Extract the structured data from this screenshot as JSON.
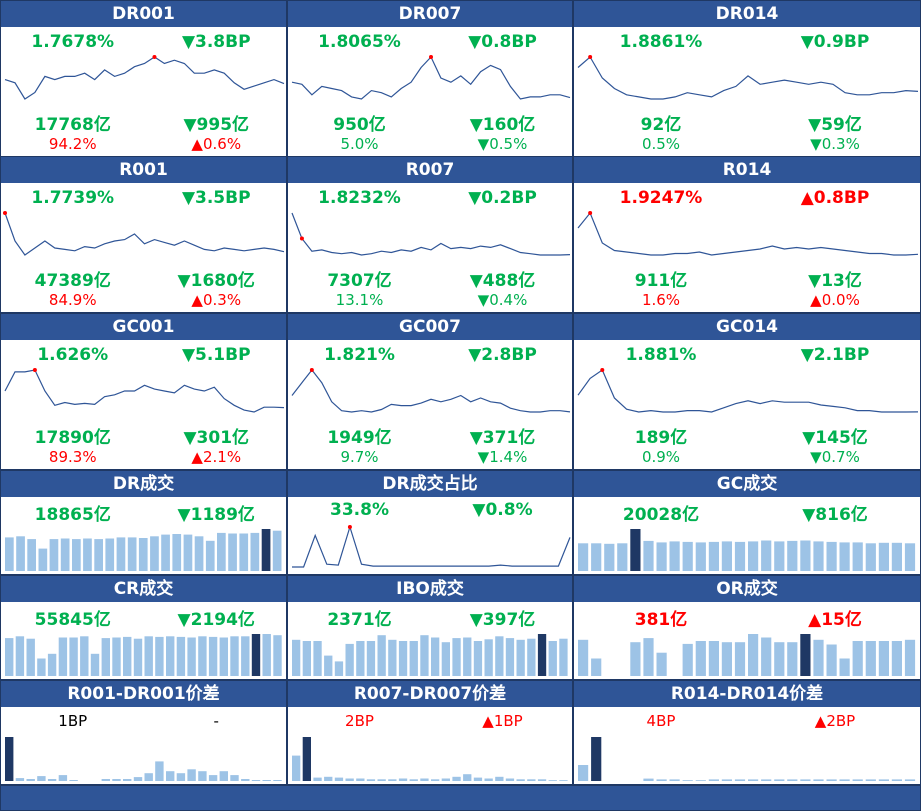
{
  "colors": {
    "header_bg": "#2f5597",
    "up": "#ff0000",
    "down": "#00b050",
    "bar": "#9dc3e6",
    "bar_hl": "#1f3864",
    "line": "#2f5597"
  },
  "rate_panels": [
    {
      "id": "dr001",
      "title": "DR001",
      "rate": "1.7678%",
      "rate_color": "green",
      "rate_change": "▼3.8BP",
      "rate_change_color": "green",
      "volume": "17768亿",
      "volume_color": "green",
      "volume_change": "▼995亿",
      "volume_change_color": "green",
      "share": "94.2%",
      "share_color": "red",
      "share_change": "▲0.6%",
      "share_change_color": "red",
      "chart_data": {
        "type": "line",
        "values": [
          1.78,
          1.77,
          1.72,
          1.74,
          1.79,
          1.78,
          1.79,
          1.79,
          1.8,
          1.78,
          1.81,
          1.79,
          1.8,
          1.82,
          1.83,
          1.85,
          1.83,
          1.84,
          1.83,
          1.8,
          1.8,
          1.81,
          1.8,
          1.77,
          1.75,
          1.76,
          1.77,
          1.78,
          1.7678
        ],
        "highlight_index": 15
      }
    },
    {
      "id": "dr007",
      "title": "DR007",
      "rate": "1.8065%",
      "rate_color": "green",
      "rate_change": "▼0.8BP",
      "rate_change_color": "green",
      "volume": "950亿",
      "volume_color": "green",
      "volume_change": "▼160亿",
      "volume_change_color": "green",
      "share": "5.0%",
      "share_color": "green",
      "share_change": "▼0.5%",
      "share_change_color": "green",
      "chart_data": {
        "type": "line",
        "values": [
          1.88,
          1.87,
          1.82,
          1.86,
          1.85,
          1.84,
          1.81,
          1.8,
          1.84,
          1.83,
          1.81,
          1.85,
          1.88,
          1.95,
          2.0,
          1.9,
          1.88,
          1.91,
          1.87,
          1.93,
          1.96,
          1.94,
          1.86,
          1.8,
          1.81,
          1.81,
          1.82,
          1.82,
          1.8065
        ],
        "highlight_index": 14
      }
    },
    {
      "id": "dr014",
      "title": "DR014",
      "rate": "1.8861%",
      "rate_color": "green",
      "rate_change": "▼0.9BP",
      "rate_change_color": "green",
      "volume": "92亿",
      "volume_color": "green",
      "volume_change": "▼59亿",
      "volume_change_color": "green",
      "share": "0.5%",
      "share_color": "green",
      "share_change": "▼0.3%",
      "share_change_color": "green",
      "chart_data": {
        "type": "line",
        "values": [
          2.0,
          2.05,
          1.95,
          1.9,
          1.87,
          1.86,
          1.85,
          1.85,
          1.86,
          1.88,
          1.87,
          1.86,
          1.89,
          1.91,
          1.96,
          1.92,
          1.93,
          1.94,
          1.93,
          1.92,
          1.93,
          1.92,
          1.88,
          1.87,
          1.87,
          1.88,
          1.88,
          1.89,
          1.8861
        ],
        "highlight_index": 1
      }
    },
    {
      "id": "r001",
      "title": "R001",
      "rate": "1.7739%",
      "rate_color": "green",
      "rate_change": "▼3.5BP",
      "rate_change_color": "green",
      "volume": "47389亿",
      "volume_color": "green",
      "volume_change": "▼1680亿",
      "volume_change_color": "green",
      "share": "84.9%",
      "share_color": "red",
      "share_change": "▲0.3%",
      "share_change_color": "red",
      "chart_data": {
        "type": "line",
        "values": [
          2.05,
          1.85,
          1.75,
          1.8,
          1.85,
          1.8,
          1.79,
          1.78,
          1.81,
          1.8,
          1.83,
          1.85,
          1.86,
          1.9,
          1.83,
          1.86,
          1.84,
          1.82,
          1.85,
          1.82,
          1.79,
          1.78,
          1.8,
          1.79,
          1.78,
          1.79,
          1.8,
          1.79,
          1.7739
        ],
        "highlight_index": 0
      }
    },
    {
      "id": "r007",
      "title": "R007",
      "rate": "1.8232%",
      "rate_color": "green",
      "rate_change": "▼0.2BP",
      "rate_change_color": "green",
      "volume": "7307亿",
      "volume_color": "green",
      "volume_change": "▼488亿",
      "volume_change_color": "green",
      "share": "13.1%",
      "share_color": "green",
      "share_change": "▼0.4%",
      "share_change_color": "green",
      "chart_data": {
        "type": "line",
        "values": [
          2.15,
          1.95,
          1.85,
          1.86,
          1.84,
          1.83,
          1.84,
          1.82,
          1.83,
          1.85,
          1.84,
          1.86,
          1.85,
          1.88,
          1.86,
          1.91,
          1.87,
          1.88,
          1.87,
          1.89,
          1.88,
          1.9,
          1.87,
          1.84,
          1.83,
          1.82,
          1.82,
          1.82,
          1.8232
        ],
        "highlight_index": 1
      }
    },
    {
      "id": "r014",
      "title": "R014",
      "rate": "1.9247%",
      "rate_color": "red",
      "rate_change": "▲0.8BP",
      "rate_change_color": "red",
      "volume": "911亿",
      "volume_color": "green",
      "volume_change": "▼13亿",
      "volume_change_color": "green",
      "share": "1.6%",
      "share_color": "red",
      "share_change": "▲0.0%",
      "share_change_color": "red",
      "chart_data": {
        "type": "line",
        "values": [
          2.1,
          2.2,
          2.0,
          1.95,
          1.94,
          1.93,
          1.92,
          1.92,
          1.93,
          1.93,
          1.94,
          1.92,
          1.93,
          1.94,
          1.95,
          1.96,
          1.98,
          1.96,
          1.97,
          1.96,
          1.97,
          1.96,
          1.95,
          1.94,
          1.93,
          1.93,
          1.92,
          1.92,
          1.9247
        ],
        "highlight_index": 1
      }
    },
    {
      "id": "gc001",
      "title": "GC001",
      "rate": "1.626%",
      "rate_color": "green",
      "rate_change": "▼5.1BP",
      "rate_change_color": "green",
      "volume": "17890亿",
      "volume_color": "green",
      "volume_change": "▼301亿",
      "volume_change_color": "green",
      "share": "89.3%",
      "share_color": "red",
      "share_change": "▲2.1%",
      "share_change_color": "red",
      "chart_data": {
        "type": "line",
        "values": [
          1.8,
          2.0,
          2.0,
          2.02,
          1.8,
          1.65,
          1.68,
          1.66,
          1.67,
          1.66,
          1.74,
          1.76,
          1.8,
          1.8,
          1.86,
          1.82,
          1.8,
          1.78,
          1.86,
          1.82,
          1.8,
          1.84,
          1.72,
          1.65,
          1.6,
          1.58,
          1.63,
          1.63,
          1.626
        ],
        "highlight_index": 3
      }
    },
    {
      "id": "gc007",
      "title": "GC007",
      "rate": "1.821%",
      "rate_color": "green",
      "rate_change": "▼2.8BP",
      "rate_change_color": "green",
      "volume": "1949亿",
      "volume_color": "green",
      "volume_change": "▼371亿",
      "volume_change_color": "green",
      "share": "9.7%",
      "share_color": "green",
      "share_change": "▼1.4%",
      "share_change_color": "green",
      "chart_data": {
        "type": "line",
        "values": [
          1.95,
          2.05,
          2.15,
          2.05,
          1.9,
          1.83,
          1.82,
          1.83,
          1.82,
          1.84,
          1.88,
          1.87,
          1.87,
          1.89,
          1.92,
          1.9,
          1.92,
          1.95,
          1.9,
          1.93,
          1.9,
          1.89,
          1.85,
          1.83,
          1.82,
          1.82,
          1.83,
          1.83,
          1.821
        ],
        "highlight_index": 2
      }
    },
    {
      "id": "gc014",
      "title": "GC014",
      "rate": "1.881%",
      "rate_color": "green",
      "rate_change": "▼2.1BP",
      "rate_change_color": "green",
      "volume": "189亿",
      "volume_color": "green",
      "volume_change": "▼145亿",
      "volume_change_color": "green",
      "share": "0.9%",
      "share_color": "green",
      "share_change": "▼0.7%",
      "share_change_color": "green",
      "chart_data": {
        "type": "line",
        "values": [
          2.0,
          2.12,
          2.18,
          1.98,
          1.9,
          1.88,
          1.89,
          1.88,
          1.88,
          1.89,
          1.89,
          1.88,
          1.91,
          1.94,
          1.96,
          1.94,
          1.96,
          1.95,
          1.95,
          1.95,
          1.93,
          1.92,
          1.91,
          1.89,
          1.89,
          1.88,
          1.88,
          1.88,
          1.881
        ],
        "highlight_index": 2
      }
    }
  ],
  "volume_panels": [
    {
      "id": "dr-volume",
      "title": "DR成交",
      "left": "18865亿",
      "left_color": "green",
      "right": "▼1189亿",
      "right_color": "green",
      "chart_data": {
        "type": "bar",
        "values": [
          60,
          62,
          57,
          40,
          57,
          58,
          57,
          58,
          57,
          58,
          60,
          60,
          59,
          62,
          65,
          66,
          65,
          62,
          54,
          68,
          67,
          67,
          68,
          75,
          72
        ],
        "highlight_index": 23
      }
    },
    {
      "id": "dr-share",
      "title": "DR成交占比",
      "left": "33.8%",
      "left_color": "green",
      "right": "▼0.8%",
      "right_color": "green",
      "chart_data": {
        "type": "line",
        "values": [
          2,
          2,
          36,
          5,
          4,
          45,
          5,
          3,
          3,
          3,
          3,
          3,
          3,
          3,
          3,
          3,
          3,
          3,
          4,
          3,
          3,
          3,
          3,
          3,
          33.8
        ],
        "highlight_index": 5
      }
    },
    {
      "id": "gc-volume",
      "title": "GC成交",
      "left": "20028亿",
      "left_color": "green",
      "right": "▼816亿",
      "right_color": "green",
      "chart_data": {
        "type": "bar",
        "values": [
          58,
          58,
          57,
          58,
          88,
          63,
          60,
          62,
          61,
          60,
          61,
          62,
          61,
          62,
          64,
          62,
          63,
          64,
          62,
          61,
          60,
          60,
          58,
          59,
          59,
          58
        ],
        "highlight_index": 4
      }
    },
    {
      "id": "cr-volume",
      "title": "CR成交",
      "left": "55845亿",
      "left_color": "green",
      "right": "▼2194亿",
      "right_color": "green",
      "chart_data": {
        "type": "bar",
        "values": [
          65,
          68,
          64,
          30,
          38,
          66,
          66,
          68,
          38,
          65,
          66,
          67,
          64,
          68,
          67,
          68,
          67,
          66,
          68,
          67,
          66,
          68,
          68,
          72,
          72,
          70
        ],
        "highlight_index": 23
      }
    },
    {
      "id": "ibo-volume",
      "title": "IBO成交",
      "left": "2371亿",
      "left_color": "green",
      "right": "▼397亿",
      "right_color": "green",
      "chart_data": {
        "type": "bar",
        "values": [
          62,
          60,
          60,
          35,
          25,
          55,
          60,
          60,
          70,
          62,
          60,
          60,
          70,
          66,
          58,
          65,
          66,
          60,
          63,
          68,
          65,
          62,
          64,
          72,
          60,
          64
        ],
        "highlight_index": 23
      }
    },
    {
      "id": "or-volume",
      "title": "OR成交",
      "left": "381亿",
      "left_color": "red",
      "right": "▲15亿",
      "right_color": "red",
      "chart_data": {
        "type": "bar",
        "values": [
          62,
          30,
          0,
          0,
          58,
          65,
          40,
          0,
          55,
          60,
          60,
          58,
          58,
          72,
          66,
          58,
          58,
          72,
          62,
          54,
          30,
          60,
          60,
          60,
          60,
          62
        ],
        "highlight_index": 17
      }
    }
  ],
  "spread_panels": [
    {
      "id": "r001-dr001-spread",
      "title": "R001-DR001价差",
      "left": "1BP",
      "left_color": "black",
      "right": "-",
      "right_color": "black",
      "chart_data": {
        "type": "bar",
        "values": [
          45,
          3,
          2,
          5,
          2,
          6,
          1,
          0,
          0,
          2,
          2,
          2,
          4,
          8,
          20,
          10,
          8,
          12,
          10,
          6,
          10,
          6,
          2,
          1,
          1,
          1
        ],
        "highlight_index": 0
      }
    },
    {
      "id": "r007-dr007-spread",
      "title": "R007-DR007价差",
      "left": "2BP",
      "left_color": "red",
      "right": "▲1BP",
      "right_color": "red",
      "chart_data": {
        "type": "bar",
        "values": [
          30,
          52,
          4,
          5,
          4,
          3,
          3,
          2,
          2,
          2,
          3,
          2,
          3,
          2,
          3,
          5,
          8,
          4,
          3,
          5,
          3,
          2,
          2,
          2,
          1,
          1
        ],
        "highlight_index": 1
      }
    },
    {
      "id": "r014-dr014-spread",
      "title": "R014-DR014价差",
      "left": "4BP",
      "left_color": "red",
      "right": "▲2BP",
      "right_color": "red",
      "chart_data": {
        "type": "bar",
        "values": [
          20,
          55,
          0,
          0,
          0,
          3,
          2,
          2,
          1,
          1,
          2,
          2,
          2,
          2,
          2,
          2,
          2,
          2,
          2,
          2,
          2,
          2,
          2,
          2,
          2,
          2
        ],
        "highlight_index": 1
      }
    }
  ]
}
